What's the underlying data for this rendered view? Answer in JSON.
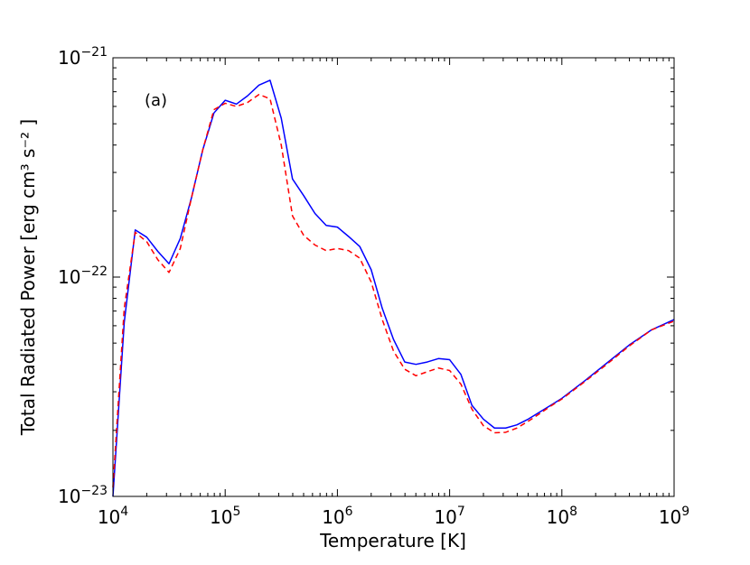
{
  "chart_data": {
    "type": "line",
    "xlabel": "Temperature [K]",
    "ylabel": "Total Radiated Power [erg cm³ s⁻² ]",
    "xscale": "log",
    "yscale": "log",
    "xlim": [
      10000,
      1000000000
    ],
    "ylim": [
      1e-23,
      1e-21
    ],
    "grid": false,
    "annotation": "(a)",
    "x_ticks": [
      {
        "base": "10",
        "exp": "4"
      },
      {
        "base": "10",
        "exp": "5"
      },
      {
        "base": "10",
        "exp": "6"
      },
      {
        "base": "10",
        "exp": "7"
      },
      {
        "base": "10",
        "exp": "8"
      },
      {
        "base": "10",
        "exp": "9"
      }
    ],
    "y_ticks": [
      {
        "base": "10",
        "exp": "−23"
      },
      {
        "base": "10",
        "exp": "−22"
      },
      {
        "base": "10",
        "exp": "−21"
      }
    ],
    "series": [
      {
        "color": "#0000ff",
        "style": "solid",
        "x": [
          10000,
          12600,
          15800,
          20000,
          25100,
          31600,
          39800,
          50100,
          63100,
          79400,
          100000,
          126000,
          158000,
          200000,
          251000,
          316000,
          398000,
          501000,
          631000,
          794000,
          1000000,
          1260000,
          1580000,
          2000000,
          2510000,
          3160000,
          3980000,
          5010000,
          6310000,
          7940000,
          10000000,
          12600000,
          15800000,
          20000000,
          25100000,
          31600000,
          39800000,
          50100000,
          63100000,
          79400000,
          100000000,
          158000000,
          251000000,
          398000000,
          631000000,
          1000000000
        ],
        "y": [
          1e-23,
          6.2e-23,
          1.64e-22,
          1.52e-22,
          1.31e-22,
          1.15e-22,
          1.5e-22,
          2.3e-22,
          3.8e-22,
          5.6e-22,
          6.4e-22,
          6.15e-22,
          6.7e-22,
          7.5e-22,
          7.9e-22,
          5.3e-22,
          2.8e-22,
          2.35e-22,
          1.95e-22,
          1.72e-22,
          1.69e-22,
          1.53e-22,
          1.38e-22,
          1.08e-22,
          7.2e-23,
          5.2e-23,
          4.1e-23,
          4e-23,
          4.1e-23,
          4.25e-23,
          4.2e-23,
          3.6e-23,
          2.6e-23,
          2.25e-23,
          2.05e-23,
          2.05e-23,
          2.12e-23,
          2.25e-23,
          2.42e-23,
          2.6e-23,
          2.8e-23,
          3.35e-23,
          4.05e-23,
          4.9e-23,
          5.75e-23,
          6.4e-23
        ]
      },
      {
        "color": "#ff0000",
        "style": "dashed",
        "x": [
          10000,
          12600,
          15800,
          20000,
          25100,
          31600,
          39800,
          50100,
          63100,
          79400,
          100000,
          126000,
          158000,
          200000,
          251000,
          316000,
          398000,
          501000,
          631000,
          794000,
          1000000,
          1260000,
          1580000,
          2000000,
          2510000,
          3160000,
          3980000,
          5010000,
          6310000,
          7940000,
          10000000,
          12600000,
          15800000,
          20000000,
          25100000,
          31600000,
          39800000,
          50100000,
          63100000,
          79400000,
          100000000,
          158000000,
          251000000,
          398000000,
          631000000,
          1000000000
        ],
        "y": [
          1.1e-23,
          7.2e-23,
          1.6e-22,
          1.45e-22,
          1.2e-22,
          1.05e-22,
          1.35e-22,
          2.3e-22,
          3.8e-22,
          5.8e-22,
          6.2e-22,
          6e-22,
          6.25e-22,
          6.8e-22,
          6.5e-22,
          4e-22,
          1.9e-22,
          1.55e-22,
          1.4e-22,
          1.32e-22,
          1.35e-22,
          1.32e-22,
          1.22e-22,
          9.5e-23,
          6.4e-23,
          4.6e-23,
          3.8e-23,
          3.55e-23,
          3.7e-23,
          3.85e-23,
          3.75e-23,
          3.25e-23,
          2.5e-23,
          2.1e-23,
          1.95e-23,
          1.96e-23,
          2.05e-23,
          2.2e-23,
          2.38e-23,
          2.58e-23,
          2.78e-23,
          3.32e-23,
          4e-23,
          4.85e-23,
          5.75e-23,
          6.3e-23
        ]
      }
    ]
  }
}
